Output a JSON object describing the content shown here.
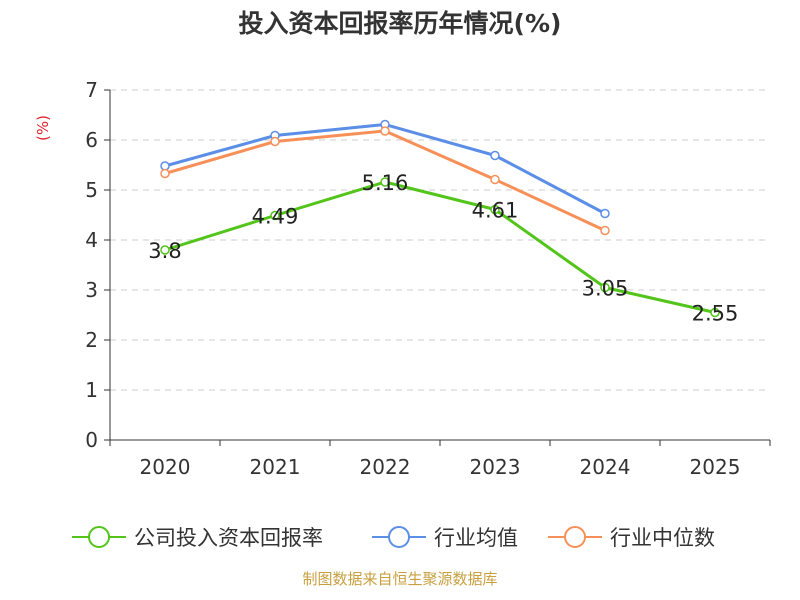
{
  "chart_data": {
    "type": "line",
    "title": "投入资本回报率历年情况(%)",
    "ylabel": "(%)",
    "xlabel": "",
    "categories": [
      "2020",
      "2021",
      "2022",
      "2023",
      "2024",
      "2025"
    ],
    "ylim": [
      0,
      7
    ],
    "yticks": [
      0,
      1,
      2,
      3,
      4,
      5,
      6,
      7
    ],
    "grid": true,
    "legend_position": "bottom",
    "series": [
      {
        "name": "公司投入资本回报率",
        "color": "#52c41a",
        "values": [
          3.8,
          4.49,
          5.16,
          4.61,
          3.05,
          2.55
        ],
        "labels": [
          "3.8",
          "4.49",
          "5.16",
          "4.61",
          "3.05",
          "2.55"
        ]
      },
      {
        "name": "行业均值",
        "color": "#5b8ee6",
        "values": [
          5.48,
          6.09,
          6.31,
          5.69,
          4.53,
          null
        ]
      },
      {
        "name": "行业中位数",
        "color": "#f79058",
        "values": [
          5.33,
          5.97,
          6.18,
          5.21,
          4.19,
          null
        ]
      }
    ],
    "source": "制图数据来自恒生聚源数据库"
  }
}
